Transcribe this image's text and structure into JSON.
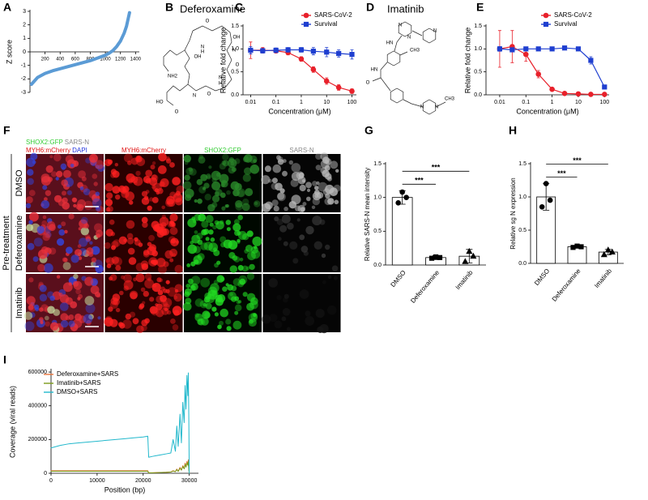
{
  "chart_data": [
    {
      "panel": "A",
      "type": "line",
      "ylabel": "Z score",
      "x_axis_at_zero": true,
      "x": [
        20,
        100,
        200,
        300,
        400,
        500,
        600,
        700,
        800,
        900,
        1000,
        1050,
        1100,
        1150,
        1200,
        1250,
        1280,
        1300,
        1320
      ],
      "series": [
        {
          "color": "#5b9bd5",
          "line_width": 4,
          "values": [
            -2.4,
            -1.9,
            -1.6,
            -1.4,
            -1.25,
            -1.1,
            -0.95,
            -0.8,
            -0.65,
            -0.45,
            -0.25,
            -0.1,
            0.1,
            0.4,
            0.8,
            1.4,
            1.9,
            2.4,
            2.9
          ]
        }
      ],
      "xlim": [
        0,
        1450
      ],
      "xticks": [
        200,
        400,
        600,
        800,
        1000,
        1200,
        1400
      ],
      "ylim": [
        -3,
        3
      ],
      "yticks": [
        3,
        2,
        1,
        0,
        -1,
        -2,
        -3
      ]
    },
    {
      "panel": "C",
      "type": "line",
      "log_x": true,
      "xlabel": "Concentration (μM)",
      "ylabel": "Relative fold change",
      "legend": "upper right",
      "x": [
        0.01,
        0.03,
        0.1,
        0.3,
        1,
        3,
        10,
        30,
        100
      ],
      "series": [
        {
          "name": "SARS-CoV-2",
          "color": "#e8212b",
          "marker": "circle",
          "line_width": 1.2,
          "values": [
            0.97,
            0.97,
            0.96,
            0.92,
            0.78,
            0.55,
            0.3,
            0.16,
            0.08
          ],
          "errors": [
            0.18,
            0.06,
            0.05,
            0.05,
            0.05,
            0.06,
            0.07,
            0.06,
            0.05
          ]
        },
        {
          "name": "Survival",
          "color": "#1f3fd0",
          "marker": "square",
          "line_width": 1.2,
          "values": [
            0.97,
            0.96,
            0.97,
            0.98,
            0.98,
            0.95,
            0.93,
            0.9,
            0.88
          ],
          "errors": [
            0.08,
            0.05,
            0.05,
            0.05,
            0.05,
            0.08,
            0.1,
            0.08,
            0.1
          ]
        }
      ],
      "xlim": [
        0.005,
        150
      ],
      "xticks": [
        0.01,
        0.1,
        1,
        10,
        100
      ],
      "ylim": [
        0,
        1.5
      ],
      "yticks": [
        {
          "value": 0,
          "label": "0.0"
        },
        0.5,
        {
          "value": 1,
          "label": "1.0"
        },
        1.5
      ]
    },
    {
      "panel": "E",
      "type": "line",
      "log_x": true,
      "xlabel": "Concentration (μM)",
      "ylabel": "Relative fold change",
      "legend": "upper right",
      "x": [
        0.01,
        0.03,
        0.1,
        0.3,
        1,
        3,
        10,
        30,
        100
      ],
      "series": [
        {
          "name": "SARS-CoV-2",
          "color": "#e8212b",
          "marker": "circle",
          "line_width": 1.2,
          "values": [
            1.0,
            1.05,
            0.88,
            0.45,
            0.12,
            0.03,
            0.02,
            0.01,
            0.01
          ],
          "errors": [
            0.4,
            0.35,
            0.15,
            0.08,
            0.03,
            0.02,
            0.02,
            0.02,
            0.02
          ]
        },
        {
          "name": "Survival",
          "color": "#1f3fd0",
          "marker": "square",
          "line_width": 1.2,
          "values": [
            1.0,
            0.98,
            1.0,
            1.0,
            1.0,
            1.02,
            1.0,
            0.75,
            0.17
          ],
          "errors": [
            0.05,
            0.04,
            0.04,
            0.04,
            0.04,
            0.04,
            0.04,
            0.08,
            0.03
          ]
        }
      ],
      "xlim": [
        0.003,
        150
      ],
      "xticks": [
        0.01,
        0.1,
        1,
        10,
        100
      ],
      "ylim": [
        0,
        1.5
      ],
      "yticks": [
        {
          "value": 0,
          "label": "0.0"
        },
        0.5,
        {
          "value": 1,
          "label": "1.0"
        },
        1.5
      ]
    },
    {
      "panel": "G",
      "type": "bar",
      "ylabel": "Relative SARS-N mean intensity",
      "categories": [
        "DMSO",
        "Deferoxamine",
        "Imatinib"
      ],
      "values": [
        1.0,
        0.11,
        0.13
      ],
      "errors": [
        0.1,
        0.03,
        0.1
      ],
      "points": [
        [
          0.92,
          1.08,
          1.0
        ],
        [
          0.1,
          0.12,
          0.11
        ],
        [
          0.05,
          0.2,
          0.13
        ]
      ],
      "markers": [
        "circle",
        "square",
        "triangle"
      ],
      "color": "#ffffff",
      "edge_color": "#000000",
      "significance": [
        {
          "pair": [
            0,
            1
          ],
          "label": "***"
        },
        {
          "pair": [
            0,
            2
          ],
          "label": "***"
        }
      ],
      "ylim": [
        0,
        1.5
      ],
      "yticks": [
        {
          "value": 0,
          "label": "0.0"
        },
        0.5,
        {
          "value": 1,
          "label": "1.0"
        },
        1.5
      ]
    },
    {
      "panel": "H",
      "type": "bar",
      "ylabel": "Relative sg N expression",
      "categories": [
        "DMSO",
        "Deferoxamine",
        "Imatinib"
      ],
      "values": [
        1.0,
        0.25,
        0.17
      ],
      "errors": [
        0.2,
        0.02,
        0.04
      ],
      "points": [
        [
          0.85,
          1.2,
          0.95
        ],
        [
          0.24,
          0.26,
          0.25
        ],
        [
          0.13,
          0.2,
          0.17
        ]
      ],
      "markers": [
        "circle",
        "square",
        "triangle"
      ],
      "color": "#ffffff",
      "edge_color": "#000000",
      "significance": [
        {
          "pair": [
            0,
            1
          ],
          "label": "***"
        },
        {
          "pair": [
            0,
            2
          ],
          "label": "***"
        }
      ],
      "ylim": [
        0,
        1.5
      ],
      "yticks": [
        {
          "value": 0,
          "label": "0.0"
        },
        0.5,
        {
          "value": 1,
          "label": "1.0"
        },
        1.5
      ]
    },
    {
      "panel": "I",
      "type": "line",
      "xlabel": "Position (bp)",
      "ylabel": "Coverage (viral reads)",
      "legend": "upper left",
      "x": [
        0,
        2000,
        4000,
        6000,
        8000,
        10000,
        12000,
        14000,
        16000,
        18000,
        20000,
        21000,
        21200,
        22000,
        23000,
        24000,
        25000,
        26000,
        26500,
        27000,
        27300,
        27600,
        28000,
        28300,
        28600,
        28900,
        29100,
        29300,
        29500,
        29700,
        29800,
        29900,
        30000
      ],
      "series": [
        {
          "name": "Deferoxamine+SARS",
          "color": "#e8733a",
          "line_width": 1,
          "values": [
            15000,
            15000,
            15000,
            15000,
            15000,
            15000,
            15000,
            15000,
            15000,
            15000,
            15000,
            15000,
            3000,
            3000,
            4000,
            5000,
            6000,
            8000,
            15000,
            10000,
            25000,
            12000,
            35000,
            20000,
            45000,
            30000,
            60000,
            40000,
            70000,
            55000,
            80000,
            30000,
            0
          ]
        },
        {
          "name": "Imatinib+SARS",
          "color": "#7a9a1a",
          "line_width": 1,
          "values": [
            12000,
            12000,
            12000,
            12000,
            12000,
            12000,
            12000,
            12000,
            12000,
            12000,
            12000,
            12000,
            2500,
            2500,
            3500,
            4500,
            5500,
            7000,
            13000,
            9000,
            22000,
            11000,
            30000,
            18000,
            40000,
            26000,
            52000,
            36000,
            62000,
            48000,
            70000,
            25000,
            0
          ]
        },
        {
          "name": "DMSO+SARS",
          "color": "#22b8cc",
          "line_width": 1,
          "values": [
            150000,
            165000,
            175000,
            180000,
            185000,
            190000,
            195000,
            200000,
            205000,
            210000,
            215000,
            220000,
            95000,
            100000,
            105000,
            110000,
            115000,
            120000,
            200000,
            130000,
            280000,
            160000,
            350000,
            180000,
            420000,
            300000,
            520000,
            380000,
            580000,
            460000,
            595000,
            350000,
            0
          ]
        }
      ],
      "xlim": [
        0,
        32000
      ],
      "xticks": [
        0,
        10000,
        20000,
        30000
      ],
      "ylim": [
        0,
        610000
      ],
      "yticks": [
        0,
        200000,
        400000,
        600000
      ]
    }
  ],
  "structures": [
    {
      "panel": "B",
      "title": "Deferoxamine",
      "atoms": [
        "O",
        "OH",
        "N",
        "O",
        "N",
        "H",
        "O",
        "OH",
        "N",
        "NH2",
        "HO",
        "O",
        "N",
        "H"
      ]
    },
    {
      "panel": "D",
      "title": "Imatinib",
      "atoms": [
        "N",
        "N",
        "N",
        "HN",
        "CH3",
        "HN",
        "O",
        "N",
        "N",
        "CH3"
      ]
    }
  ],
  "micrographs": {
    "panel": "F",
    "headers": [
      {
        "lines": [
          [
            {
              "text": "SHOX2:GFP",
              "color": "#33cc33"
            },
            {
              "text": "SARS-N",
              "color": "#888888"
            }
          ],
          [
            {
              "text": "MYH6:mCherry",
              "color": "#e01010"
            },
            {
              "text": "DAPI",
              "color": "#2233dd"
            }
          ]
        ]
      },
      {
        "lines": [
          [
            {
              "text": "MYH6:mCherry",
              "color": "#e01010"
            }
          ]
        ]
      },
      {
        "lines": [
          [
            {
              "text": "SHOX2:GFP",
              "color": "#33cc33"
            }
          ]
        ]
      },
      {
        "lines": [
          [
            {
              "text": "SARS-N",
              "color": "#888888"
            }
          ]
        ]
      }
    ],
    "rows": [
      "DMSO",
      "Deferoxamine",
      "Imatinib"
    ],
    "group": "Pre-treatment"
  }
}
